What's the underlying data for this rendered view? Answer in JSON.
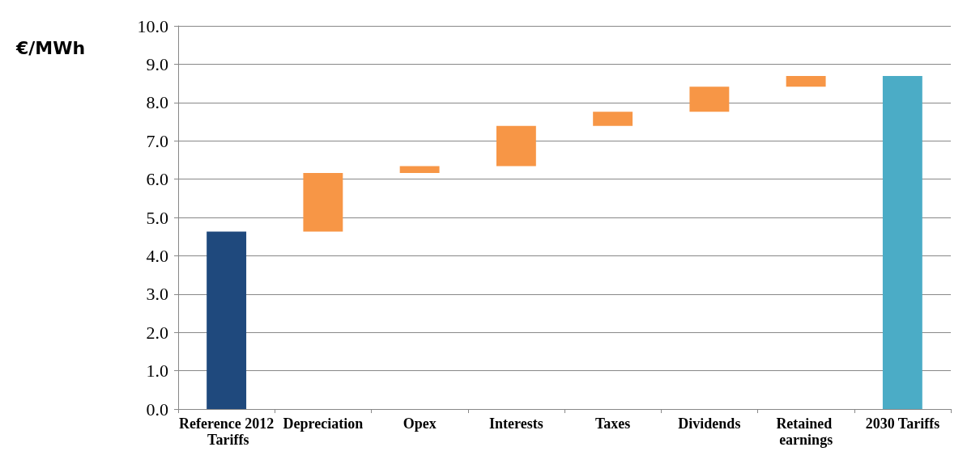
{
  "chart_data": {
    "type": "bar",
    "ylabel": "€/MWh",
    "categories": [
      "Reference 2012 Tariffs",
      "Depreciation",
      "Opex",
      "Interests",
      "Taxes",
      "Dividends",
      "Retained earnings",
      "2030 Tariffs"
    ],
    "values": [
      4.63,
      1.53,
      0.18,
      1.05,
      0.37,
      0.65,
      0.28,
      8.69
    ],
    "base": [
      0,
      4.63,
      6.16,
      6.34,
      7.39,
      7.76,
      8.41,
      0
    ],
    "colors": [
      "#1f497d",
      "#f79646",
      "#f79646",
      "#f79646",
      "#f79646",
      "#f79646",
      "#f79646",
      "#4bacc6"
    ],
    "ylim": [
      0,
      10
    ],
    "yticks": [
      {
        "value": 0,
        "label": "0.0"
      },
      {
        "value": 1,
        "label": "1.0"
      },
      {
        "value": 2,
        "label": "2.0"
      },
      {
        "value": 3,
        "label": "3.0"
      },
      {
        "value": 4,
        "label": "4.0"
      },
      {
        "value": 5,
        "label": "5.0"
      },
      {
        "value": 6,
        "label": "6.0"
      },
      {
        "value": 7,
        "label": "7.0"
      },
      {
        "value": 8,
        "label": "8.0"
      },
      {
        "value": 9,
        "label": "9.0"
      },
      {
        "value": 10,
        "label": "10.0"
      }
    ],
    "grid": "y"
  }
}
